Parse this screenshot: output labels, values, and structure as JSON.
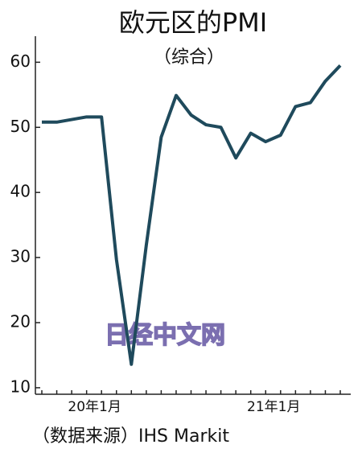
{
  "chart_data": {
    "type": "line",
    "title": "欧元区的PMI",
    "subtitle": "（综合）",
    "source": "（数据来源）IHS Markit",
    "watermark": "日经中文网",
    "categories": [
      null,
      null,
      null,
      "20年1月",
      null,
      null,
      null,
      null,
      null,
      null,
      null,
      null,
      null,
      null,
      null,
      "21年1月",
      null,
      null,
      null,
      null,
      null
    ],
    "series": [
      {
        "name": "PMI",
        "color": "#1f4a5c",
        "values": [
          50.8,
          50.8,
          51.2,
          51.6,
          51.6,
          29.7,
          13.6,
          31.9,
          48.5,
          54.9,
          51.9,
          50.4,
          50.0,
          45.3,
          49.1,
          47.8,
          48.8,
          53.2,
          53.8,
          57.1,
          59.5
        ]
      }
    ],
    "ylim": [
      9,
      64
    ],
    "yticks": [
      10,
      20,
      30,
      40,
      50,
      60
    ]
  }
}
